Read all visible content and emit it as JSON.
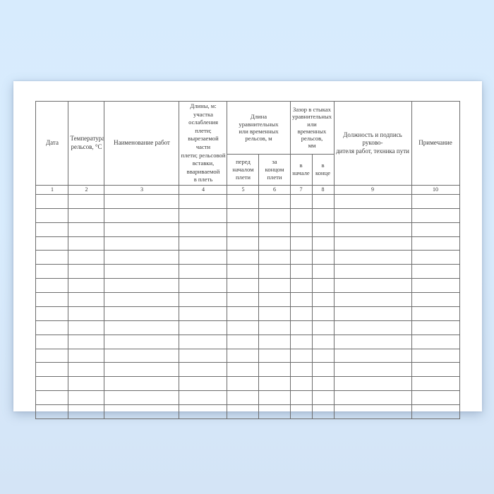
{
  "colors": {
    "page_background_top": "#d7ebfd",
    "page_background_bottom": "#d4e4f6",
    "paper_background": "#ffffff",
    "table_border": "#6d6d6d",
    "text": "#3a3a3a"
  },
  "table": {
    "groups": [
      {
        "label": "Длина\nуравнительных\nили временных\nрельсов, м"
      },
      {
        "label": "Зазор в стыках\nуравнительных или\nвременных рельсов,\nмм"
      }
    ],
    "columns": [
      {
        "number": "1",
        "header": "Дата"
      },
      {
        "number": "2",
        "header": "Температура\nрельсов, °С"
      },
      {
        "number": "3",
        "header": "Наименование работ"
      },
      {
        "number": "4",
        "header": "Длины, м: участка\nослабления плети;\nвырезаемой части\nплети; рельсовой\nвставки, ввариваемой\nв плеть"
      },
      {
        "number": "5",
        "header": "перед\nначалом\nплети"
      },
      {
        "number": "6",
        "header": "за\nконцом\nплети"
      },
      {
        "number": "7",
        "header": "в начале"
      },
      {
        "number": "8",
        "header": "в конце"
      },
      {
        "number": "9",
        "header": "Должность и подпись руково-\nдителя работ, техника пути"
      },
      {
        "number": "10",
        "header": "Примечание"
      }
    ],
    "empty_row_count": 16
  }
}
